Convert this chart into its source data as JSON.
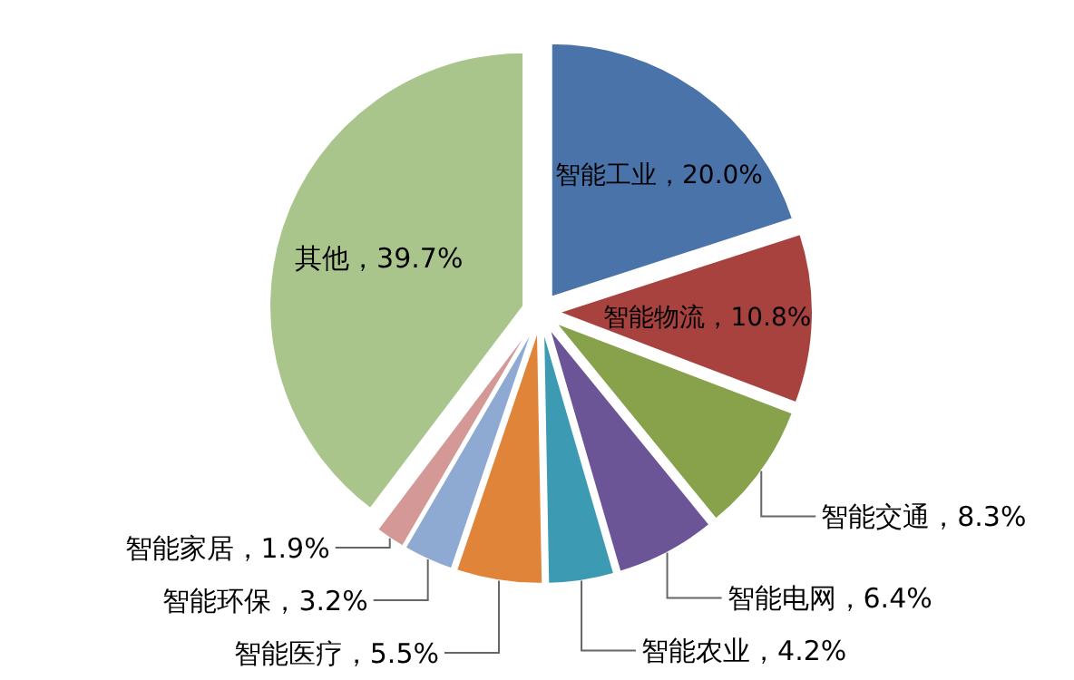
{
  "chart_data": {
    "type": "pie",
    "categories": [
      "智能工业",
      "智能物流",
      "智能交通",
      "智能电网",
      "智能农业",
      "智能医疗",
      "智能环保",
      "智能家居",
      "其他"
    ],
    "values": [
      20.0,
      10.8,
      8.3,
      6.4,
      4.2,
      5.5,
      3.2,
      1.9,
      39.7
    ],
    "value_labels": [
      "20.0%",
      "10.8%",
      "8.3%",
      "6.4%",
      "4.2%",
      "5.5%",
      "3.2%",
      "1.9%",
      "39.7%"
    ],
    "colors": [
      "#4a73a9",
      "#a8423f",
      "#87a24b",
      "#6b5597",
      "#3c9bb2",
      "#e0843a",
      "#8eaad3",
      "#d49896",
      "#aac58c"
    ]
  }
}
